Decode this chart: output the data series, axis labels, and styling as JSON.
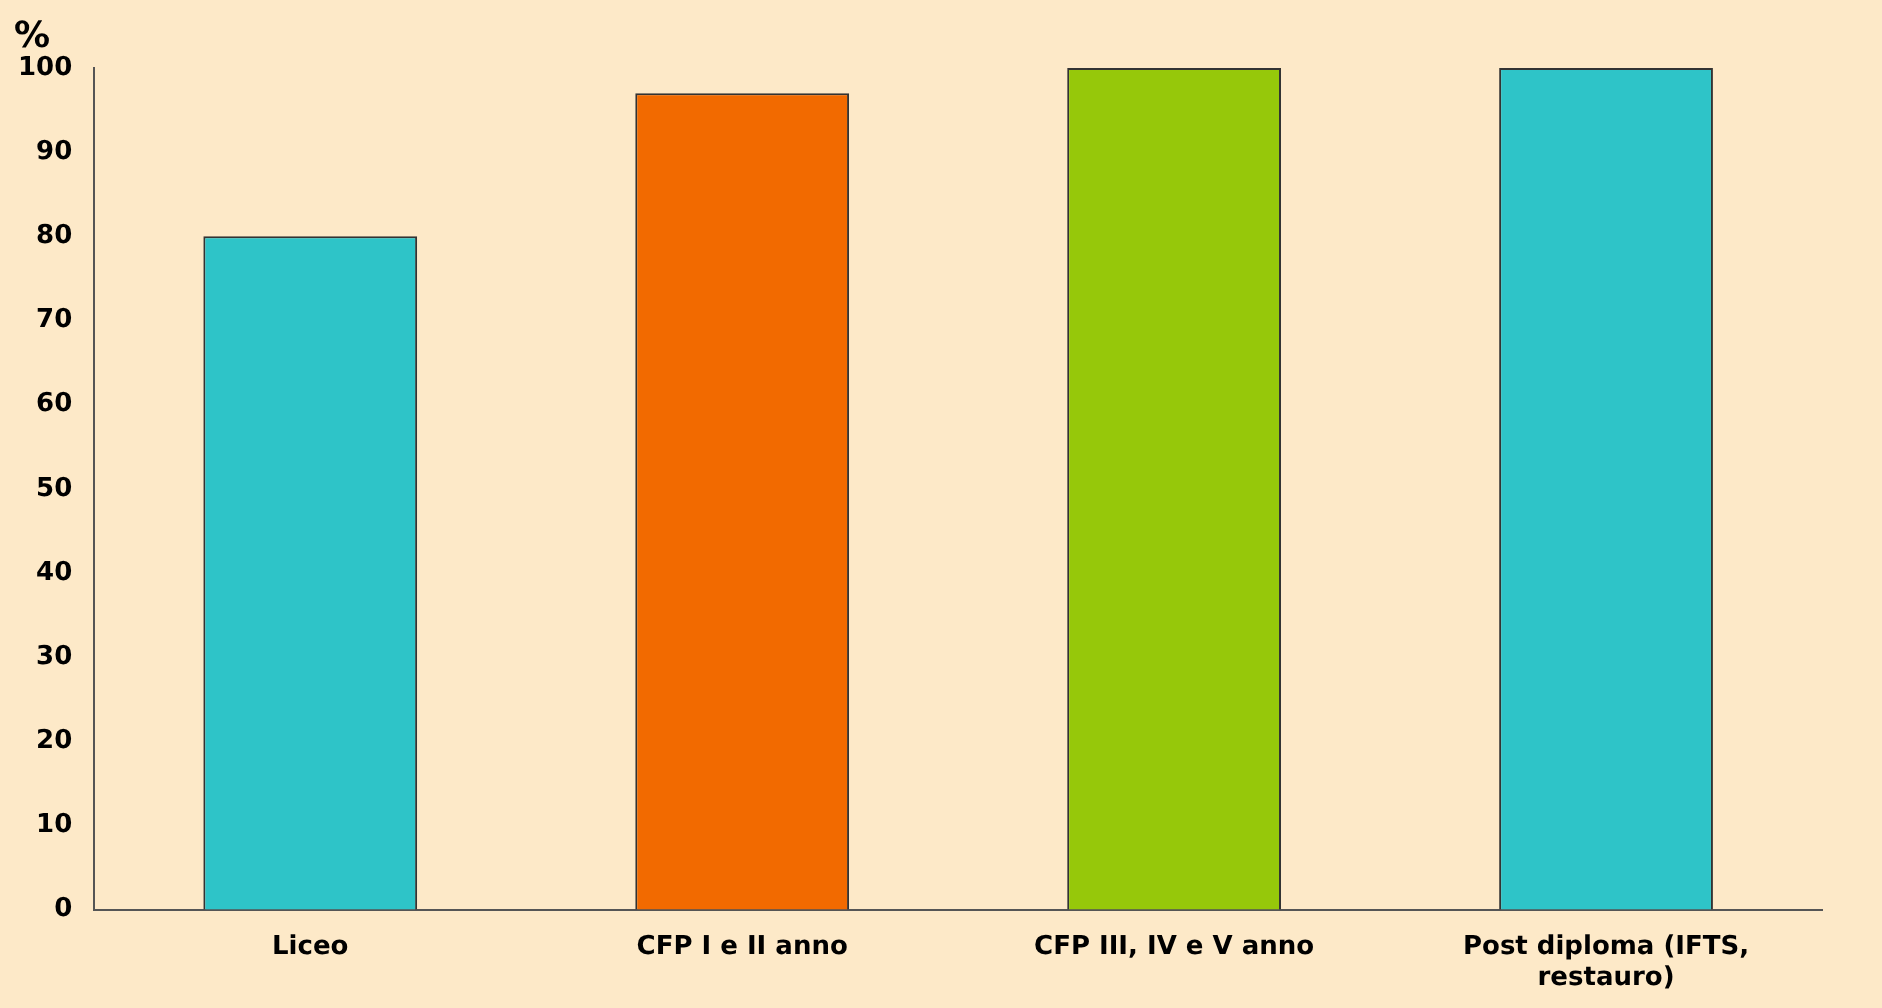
{
  "chart_data": {
    "type": "bar",
    "ylabel": "%",
    "categories": [
      "Liceo",
      "CFP I e II anno",
      "CFP III, IV e V anno",
      "Post diploma (IFTS, restauro)"
    ],
    "values": [
      80,
      97,
      100,
      100
    ],
    "colors": [
      "#2ec4c8",
      "#f26a00",
      "#96c80a",
      "#2ec4c8"
    ],
    "ylim": [
      0,
      100
    ],
    "yticks": [
      0,
      10,
      20,
      30,
      40,
      50,
      60,
      70,
      80,
      90,
      100
    ],
    "grid": false,
    "legend": false
  }
}
